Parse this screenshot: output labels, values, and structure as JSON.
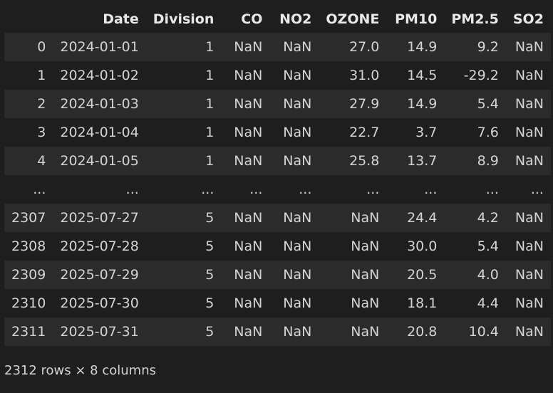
{
  "table": {
    "columns": [
      "",
      "Date",
      "Division",
      "CO",
      "NO2",
      "OZONE",
      "PM10",
      "PM2.5",
      "SO2"
    ],
    "rows": [
      [
        "0",
        "2024-01-01",
        "1",
        "NaN",
        "NaN",
        "27.0",
        "14.9",
        "9.2",
        "NaN"
      ],
      [
        "1",
        "2024-01-02",
        "1",
        "NaN",
        "NaN",
        "31.0",
        "14.5",
        "-29.2",
        "NaN"
      ],
      [
        "2",
        "2024-01-03",
        "1",
        "NaN",
        "NaN",
        "27.9",
        "14.9",
        "5.4",
        "NaN"
      ],
      [
        "3",
        "2024-01-04",
        "1",
        "NaN",
        "NaN",
        "22.7",
        "3.7",
        "7.6",
        "NaN"
      ],
      [
        "4",
        "2024-01-05",
        "1",
        "NaN",
        "NaN",
        "25.8",
        "13.7",
        "8.9",
        "NaN"
      ],
      [
        "...",
        "...",
        "...",
        "...",
        "...",
        "...",
        "...",
        "...",
        "..."
      ],
      [
        "2307",
        "2025-07-27",
        "5",
        "NaN",
        "NaN",
        "NaN",
        "24.4",
        "4.2",
        "NaN"
      ],
      [
        "2308",
        "2025-07-28",
        "5",
        "NaN",
        "NaN",
        "NaN",
        "30.0",
        "5.4",
        "NaN"
      ],
      [
        "2309",
        "2025-07-29",
        "5",
        "NaN",
        "NaN",
        "NaN",
        "20.5",
        "4.0",
        "NaN"
      ],
      [
        "2310",
        "2025-07-30",
        "5",
        "NaN",
        "NaN",
        "NaN",
        "18.1",
        "4.4",
        "NaN"
      ],
      [
        "2311",
        "2025-07-31",
        "5",
        "NaN",
        "NaN",
        "NaN",
        "20.8",
        "10.4",
        "NaN"
      ]
    ]
  },
  "footer": {
    "shape": "2312 rows × 8 columns"
  },
  "colors": {
    "background": "#1e1e1e",
    "row_stripe": "#2b2b2b",
    "text": "#d4d4d4"
  }
}
